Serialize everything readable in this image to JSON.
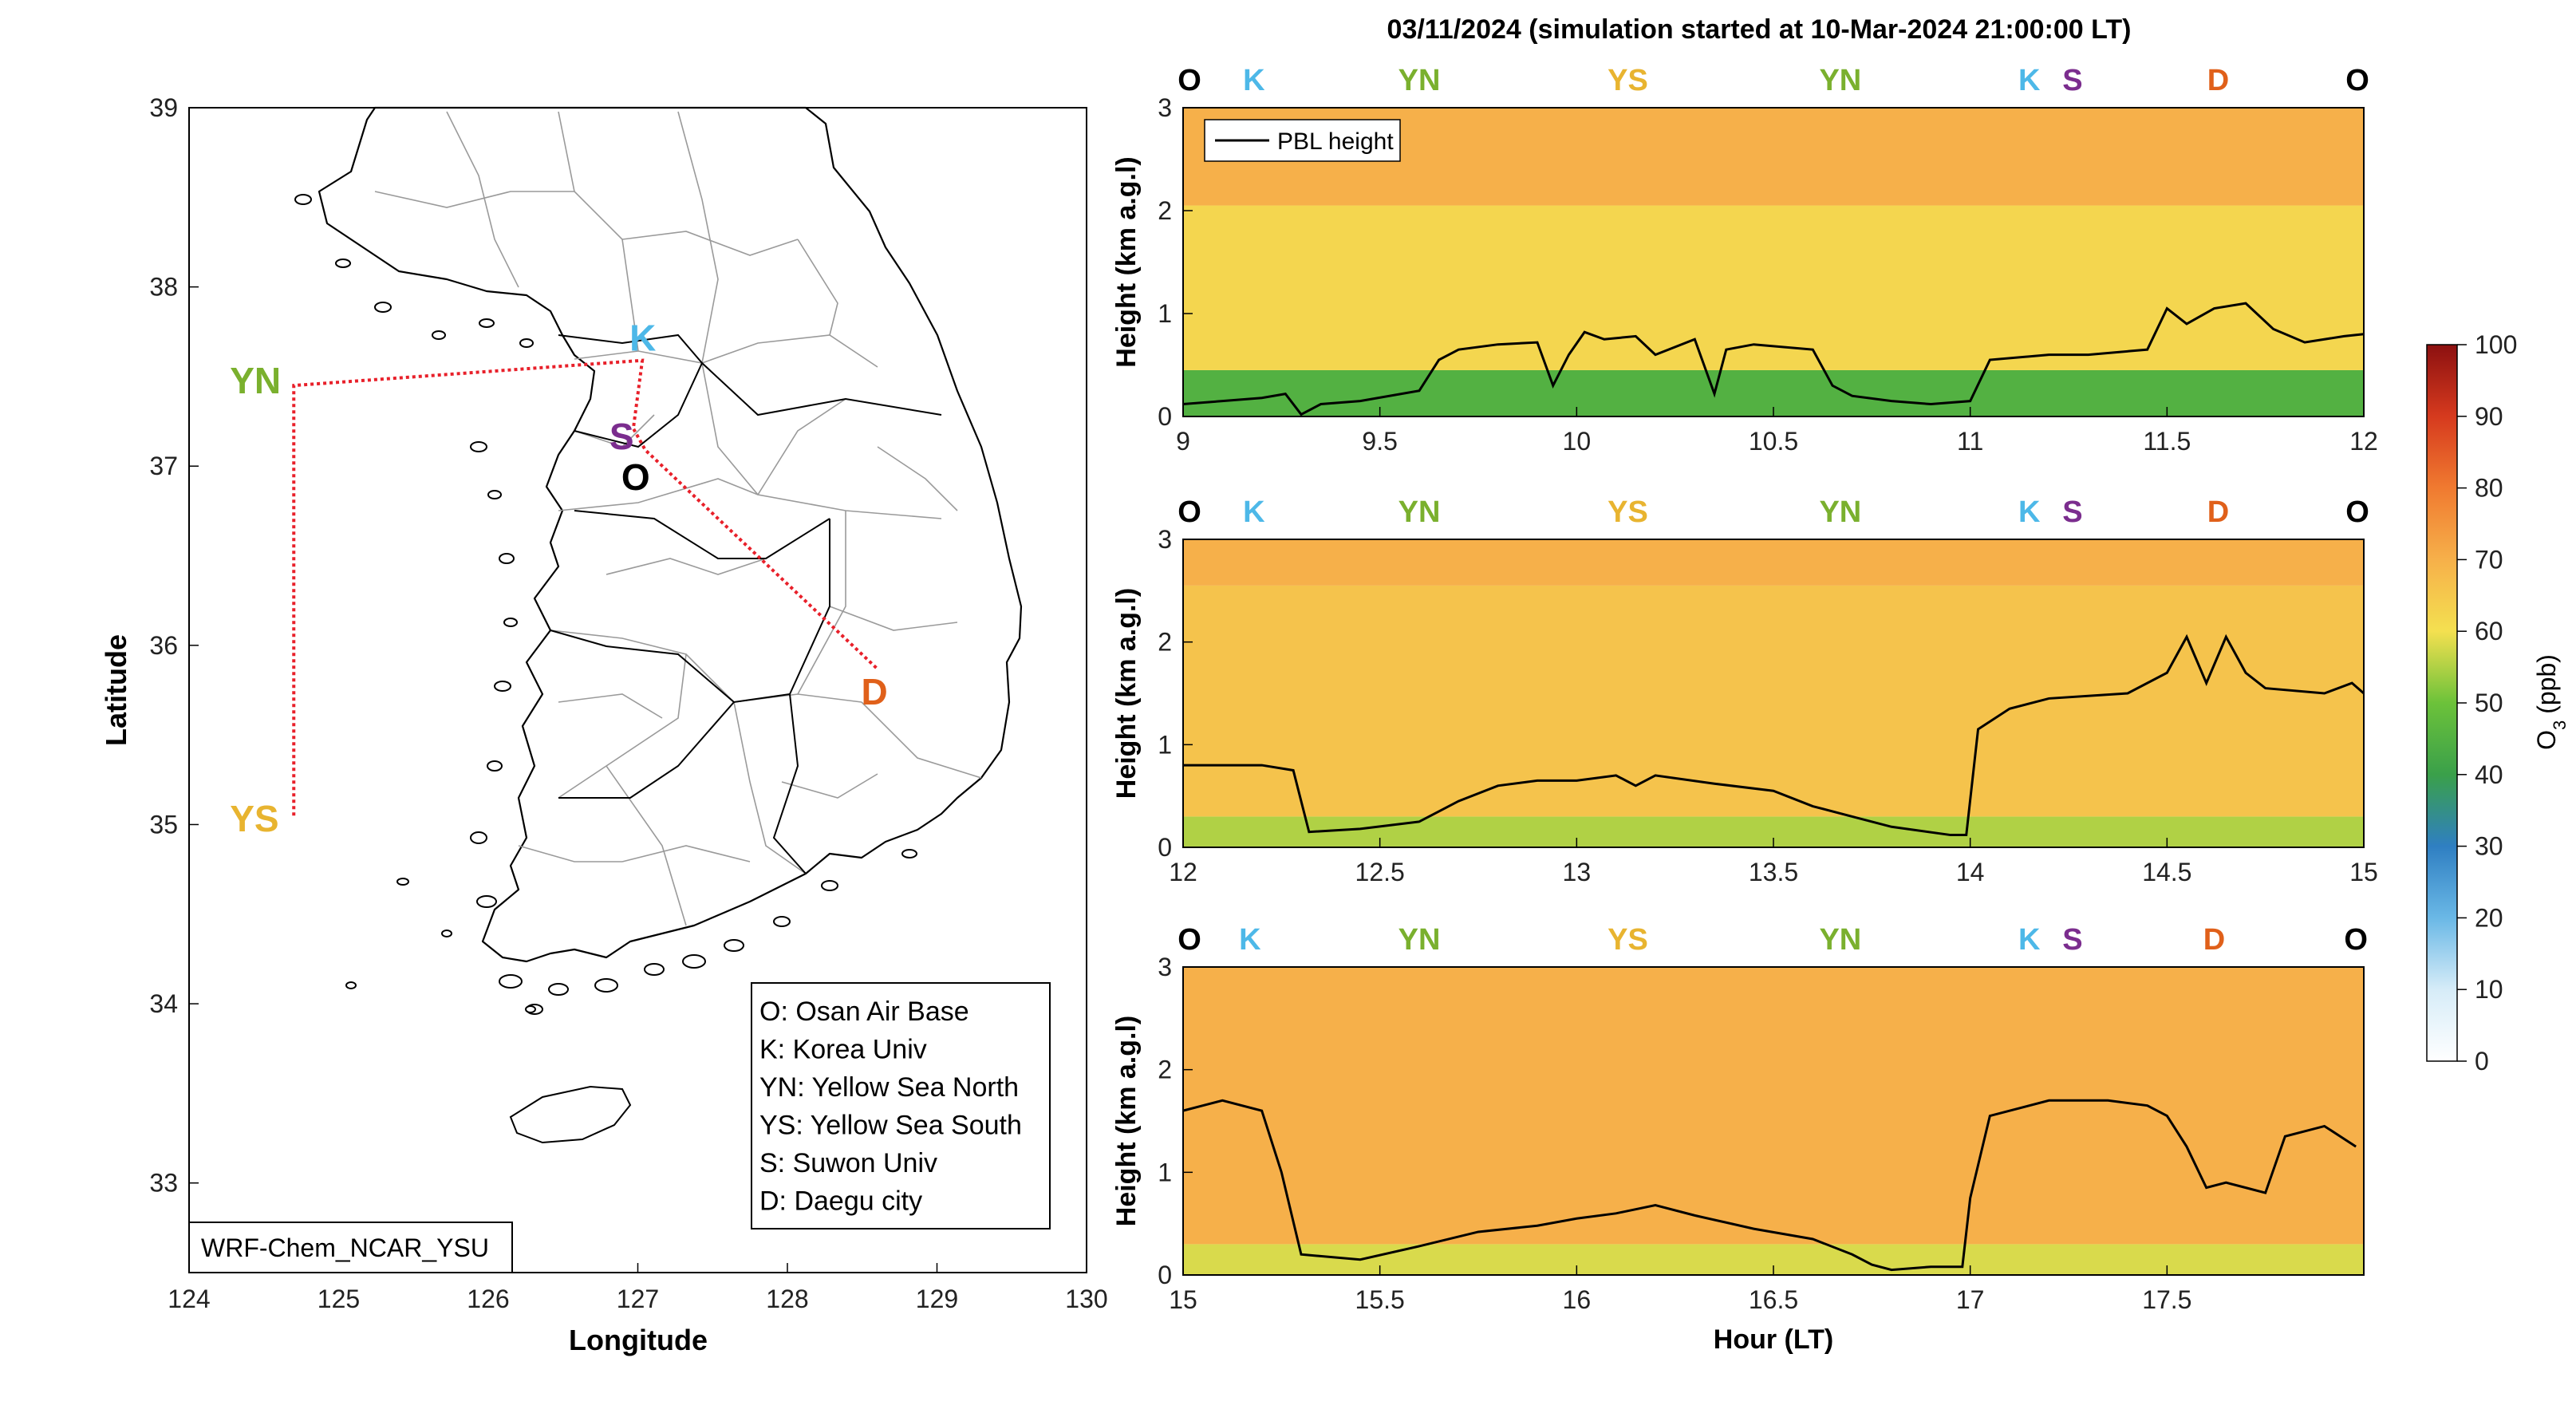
{
  "figure": {
    "title": "03/11/2024 (simulation started at 10-Mar-2024 21:00:00 LT)",
    "model_label": "WRF-Chem_NCAR_YSU"
  },
  "map": {
    "xlabel": "Longitude",
    "ylabel": "Latitude",
    "xlim": [
      124,
      130
    ],
    "ylim": [
      32.5,
      39
    ],
    "xticks": [
      "124",
      "125",
      "126",
      "127",
      "128",
      "129",
      "130"
    ],
    "yticks": [
      "33",
      "34",
      "35",
      "36",
      "37",
      "38",
      "39"
    ],
    "route_color": "#e8202a",
    "sites": [
      {
        "code": "O",
        "name": "Osan Air Base",
        "lon": 127.05,
        "lat": 37.09,
        "color": "#000000"
      },
      {
        "code": "K",
        "name": "Korea Univ",
        "lon": 127.03,
        "lat": 37.59,
        "color": "#4db8e8"
      },
      {
        "code": "S",
        "name": "Suwon Univ",
        "lon": 126.97,
        "lat": 37.21,
        "color": "#7b2d8e"
      },
      {
        "code": "D",
        "name": "Daegu city",
        "lon": 128.6,
        "lat": 35.87,
        "color": "#e0601a"
      },
      {
        "code": "YN",
        "name": "Yellow Sea North",
        "lon": 124.7,
        "lat": 37.45,
        "color": "#7ab02e"
      },
      {
        "code": "YS",
        "name": "Yellow Sea South",
        "lon": 124.7,
        "lat": 35.05,
        "color": "#e8b430"
      }
    ],
    "legend": [
      "O: Osan Air Base",
      "K: Korea Univ",
      "YN: Yellow Sea North",
      "YS: Yellow Sea South",
      "S: Suwon Univ",
      "D: Daegu city"
    ]
  },
  "chart_data": [
    {
      "type": "heatmap",
      "title": "03/11/2024 (simulation started at 10-Mar-2024 21:00:00 LT)",
      "xlabel": "",
      "ylabel": "Height (km a.g.l)",
      "xlim": [
        9,
        12
      ],
      "ylim": [
        0,
        3
      ],
      "xticks": [
        "9",
        "9.5",
        "10",
        "10.5",
        "11",
        "11.5",
        "12"
      ],
      "yticks": [
        "0",
        "1",
        "2",
        "3"
      ],
      "site_labels": [
        {
          "label": "O",
          "x": 9.0,
          "color": "#000000"
        },
        {
          "label": "K",
          "x": 9.18,
          "color": "#4db8e8"
        },
        {
          "label": "YN",
          "x": 9.6,
          "color": "#7ab02e"
        },
        {
          "label": "YS",
          "x": 10.13,
          "color": "#e8b430"
        },
        {
          "label": "YN",
          "x": 10.67,
          "color": "#7ab02e"
        },
        {
          "label": "K",
          "x": 11.15,
          "color": "#4db8e8"
        },
        {
          "label": "S",
          "x": 11.26,
          "color": "#7b2d8e"
        },
        {
          "label": "D",
          "x": 11.63,
          "color": "#e0601a"
        },
        {
          "label": "O",
          "x": 12.0,
          "color": "#000000"
        }
      ],
      "series": [
        {
          "name": "PBL height",
          "x": [
            9.0,
            9.1,
            9.2,
            9.26,
            9.3,
            9.35,
            9.45,
            9.6,
            9.65,
            9.7,
            9.8,
            9.9,
            9.94,
            9.98,
            10.02,
            10.07,
            10.15,
            10.2,
            10.3,
            10.35,
            10.38,
            10.45,
            10.6,
            10.65,
            10.7,
            10.8,
            10.9,
            11.0,
            11.05,
            11.2,
            11.3,
            11.45,
            11.5,
            11.55,
            11.62,
            11.7,
            11.77,
            11.85,
            11.95,
            12.0
          ],
          "values": [
            0.12,
            0.15,
            0.18,
            0.22,
            0.02,
            0.12,
            0.15,
            0.25,
            0.55,
            0.65,
            0.7,
            0.72,
            0.3,
            0.6,
            0.82,
            0.75,
            0.78,
            0.6,
            0.75,
            0.22,
            0.65,
            0.7,
            0.65,
            0.3,
            0.2,
            0.15,
            0.12,
            0.15,
            0.55,
            0.6,
            0.6,
            0.65,
            1.05,
            0.9,
            1.05,
            1.1,
            0.85,
            0.72,
            0.78,
            0.8
          ]
        }
      ],
      "ozone_layers_ppb": [
        {
          "top_km": 0.45,
          "value": 45
        },
        {
          "top_km": 2.05,
          "value": 62
        },
        {
          "top_km": 3.0,
          "value": 70
        }
      ],
      "legend": "top-left"
    },
    {
      "type": "heatmap",
      "xlabel": "",
      "ylabel": "Height (km a.g.l)",
      "xlim": [
        12,
        15
      ],
      "ylim": [
        0,
        3
      ],
      "xticks": [
        "12",
        "12.5",
        "13",
        "13.5",
        "14",
        "14.5",
        "15"
      ],
      "yticks": [
        "0",
        "1",
        "2",
        "3"
      ],
      "site_labels": [
        {
          "label": "O",
          "x": 12.0,
          "color": "#000000"
        },
        {
          "label": "K",
          "x": 12.18,
          "color": "#4db8e8"
        },
        {
          "label": "YN",
          "x": 12.6,
          "color": "#7ab02e"
        },
        {
          "label": "YS",
          "x": 13.13,
          "color": "#e8b430"
        },
        {
          "label": "YN",
          "x": 13.67,
          "color": "#7ab02e"
        },
        {
          "label": "K",
          "x": 14.15,
          "color": "#4db8e8"
        },
        {
          "label": "S",
          "x": 14.26,
          "color": "#7b2d8e"
        },
        {
          "label": "D",
          "x": 14.63,
          "color": "#e0601a"
        },
        {
          "label": "O",
          "x": 15.0,
          "color": "#000000"
        }
      ],
      "series": [
        {
          "name": "PBL height",
          "x": [
            12.0,
            12.1,
            12.2,
            12.28,
            12.32,
            12.45,
            12.6,
            12.7,
            12.8,
            12.9,
            13.0,
            13.1,
            13.15,
            13.2,
            13.35,
            13.5,
            13.6,
            13.7,
            13.8,
            13.95,
            13.99,
            14.02,
            14.1,
            14.2,
            14.4,
            14.5,
            14.55,
            14.6,
            14.65,
            14.7,
            14.75,
            14.9,
            14.97,
            15.0
          ],
          "values": [
            0.8,
            0.8,
            0.8,
            0.75,
            0.15,
            0.18,
            0.25,
            0.45,
            0.6,
            0.65,
            0.65,
            0.7,
            0.6,
            0.7,
            0.62,
            0.55,
            0.4,
            0.3,
            0.2,
            0.12,
            0.12,
            1.15,
            1.35,
            1.45,
            1.5,
            1.7,
            2.05,
            1.6,
            2.05,
            1.7,
            1.55,
            1.5,
            1.6,
            1.5
          ]
        }
      ],
      "ozone_layers_ppb": [
        {
          "top_km": 0.3,
          "value": 55
        },
        {
          "top_km": 2.55,
          "value": 66
        },
        {
          "top_km": 3.0,
          "value": 70
        }
      ]
    },
    {
      "type": "heatmap",
      "xlabel": "Hour (LT)",
      "ylabel": "Height (km a.g.l)",
      "xlim": [
        15,
        18
      ],
      "ylim": [
        0,
        3
      ],
      "xticks": [
        "15",
        "15.5",
        "16",
        "16.5",
        "17",
        "17.5"
      ],
      "yticks": [
        "0",
        "1",
        "2",
        "3"
      ],
      "site_labels": [
        {
          "label": "O",
          "x": 15.0,
          "color": "#000000"
        },
        {
          "label": "K",
          "x": 15.17,
          "color": "#4db8e8"
        },
        {
          "label": "YN",
          "x": 15.6,
          "color": "#7ab02e"
        },
        {
          "label": "YS",
          "x": 16.13,
          "color": "#e8b430"
        },
        {
          "label": "YN",
          "x": 16.67,
          "color": "#7ab02e"
        },
        {
          "label": "K",
          "x": 17.15,
          "color": "#4db8e8"
        },
        {
          "label": "S",
          "x": 17.26,
          "color": "#7b2d8e"
        },
        {
          "label": "D",
          "x": 17.62,
          "color": "#e0601a"
        },
        {
          "label": "O",
          "x": 17.98,
          "color": "#000000"
        }
      ],
      "series": [
        {
          "name": "PBL height",
          "x": [
            15.0,
            15.05,
            15.1,
            15.2,
            15.25,
            15.3,
            15.45,
            15.6,
            15.75,
            15.9,
            16.0,
            16.1,
            16.2,
            16.3,
            16.45,
            16.6,
            16.7,
            16.75,
            16.8,
            16.9,
            16.98,
            17.0,
            17.05,
            17.2,
            17.35,
            17.45,
            17.5,
            17.55,
            17.6,
            17.65,
            17.7,
            17.75,
            17.8,
            17.9,
            17.98
          ],
          "values": [
            1.6,
            1.65,
            1.7,
            1.6,
            1.0,
            0.2,
            0.15,
            0.28,
            0.42,
            0.48,
            0.55,
            0.6,
            0.68,
            0.58,
            0.45,
            0.35,
            0.2,
            0.1,
            0.05,
            0.08,
            0.08,
            0.75,
            1.55,
            1.7,
            1.7,
            1.65,
            1.55,
            1.25,
            0.85,
            0.9,
            0.85,
            0.8,
            1.35,
            1.45,
            1.25
          ]
        }
      ],
      "ozone_layers_ppb": [
        {
          "top_km": 0.3,
          "value": 58
        },
        {
          "top_km": 3.0,
          "value": 70
        }
      ]
    }
  ],
  "colorbar": {
    "label": "O3 (ppb)",
    "label_main": "O",
    "label_sub": "3",
    "label_unit": "(ppb)",
    "min": 0,
    "max": 100,
    "ticks": [
      "0",
      "10",
      "20",
      "30",
      "40",
      "50",
      "60",
      "70",
      "80",
      "90",
      "100"
    ],
    "stops": [
      "#ffffff",
      "#d6ecf8",
      "#6ab8e6",
      "#2f7fc2",
      "#3aa04a",
      "#6cc23a",
      "#f4e050",
      "#f6b04a",
      "#f07a30",
      "#d63a1e",
      "#8c1010"
    ]
  }
}
